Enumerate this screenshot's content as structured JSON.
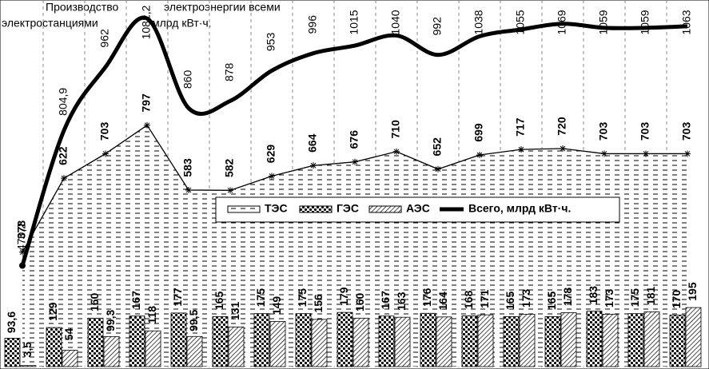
{
  "chart_data": {
    "type": "combo",
    "title_parts": [
      "Производство",
      "электроэнергии всеми",
      "электростанциями",
      "млрд  кВт·ч."
    ],
    "ylim": [
      0,
      1200
    ],
    "y2lim": [
      220,
      1120
    ],
    "series": [
      {
        "name": "ТЭС",
        "kind": "area",
        "color": "#000000",
        "values": [
          378,
          622,
          703,
          797,
          583,
          582,
          629,
          664,
          676,
          710,
          652,
          699,
          717,
          720,
          703,
          703,
          703
        ]
      },
      {
        "name": "ГЭС",
        "kind": "bar",
        "color": "#000000",
        "values": [
          93.6,
          129,
          160,
          167,
          177,
          165,
          175,
          175,
          179,
          167,
          176,
          168,
          165,
          165,
          183,
          175,
          170
        ],
        "value_labels": [
          "93,6",
          "129",
          "160",
          "167",
          "177",
          "165",
          "175",
          "175",
          "179",
          "167",
          "176",
          "168",
          "165",
          "165",
          "183",
          "175",
          "170"
        ]
      },
      {
        "name": "АЭС",
        "kind": "bar",
        "color": "#000000",
        "values": [
          3.5,
          54,
          99.3,
          118,
          99.5,
          131,
          149,
          156,
          160,
          163,
          164,
          171,
          173,
          178,
          173,
          181,
          195
        ],
        "value_labels": [
          "3,5",
          "54",
          "99,3",
          "118",
          "99,5",
          "131",
          "149",
          "156",
          "160",
          "163",
          "164",
          "171",
          "173",
          "178",
          "173",
          "181",
          "195"
        ]
      },
      {
        "name": "Всего, млрд кВт·ч.",
        "kind": "line",
        "axis": "y2",
        "color": "#000000",
        "values": [
          470.2,
          804.9,
          962,
          1082.2,
          860,
          878,
          953,
          996,
          1015,
          1040,
          992,
          1038,
          1055,
          1069,
          1059,
          1059,
          1063
        ],
        "value_labels": [
          "470,2",
          "804,9",
          "962",
          "1082,2",
          "860",
          "878",
          "953",
          "996",
          "1015",
          "1040",
          "992",
          "1038",
          "1055",
          "1069",
          "1059",
          "1059",
          "1063"
        ]
      }
    ]
  }
}
